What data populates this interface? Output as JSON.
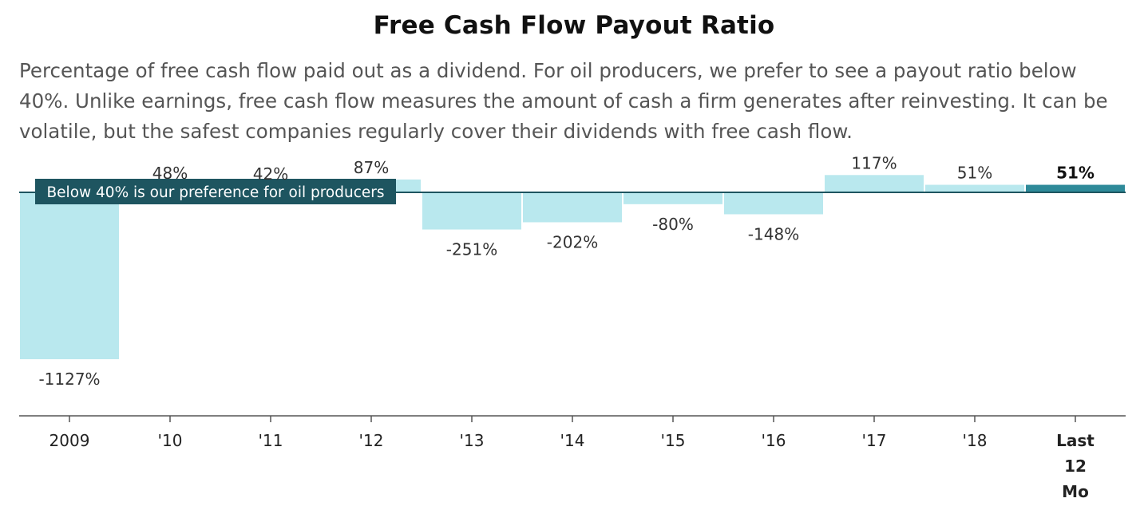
{
  "title": "Free Cash Flow Payout Ratio",
  "description": "Percentage of free cash flow paid out as a dividend. For oil producers, we prefer to see a payout ratio below 40%. Unlike earnings, free cash flow measures the amount of cash a firm generates after reinvesting. It can be volatile, but the safest companies regularly cover their dividends with free cash flow.",
  "colors": {
    "bar": "#b9e8ee",
    "bar_highlight": "#2e8a99",
    "reference_line": "#1e5560",
    "reference_label_bg": "#1e5560",
    "axis": "#555555"
  },
  "chart_data": {
    "type": "bar",
    "categories": [
      "2009",
      "'10",
      "'11",
      "'12",
      "'13",
      "'14",
      "'15",
      "'16",
      "'17",
      "'18",
      "Last 12 Mo"
    ],
    "category_lines": [
      [
        "2009"
      ],
      [
        "'10"
      ],
      [
        "'11"
      ],
      [
        "'12"
      ],
      [
        "'13"
      ],
      [
        "'14"
      ],
      [
        "'15"
      ],
      [
        "'16"
      ],
      [
        "'17"
      ],
      [
        "'18"
      ],
      [
        "Last",
        "12",
        "Mo"
      ]
    ],
    "values": [
      -1127,
      48,
      42,
      87,
      -251,
      -202,
      -80,
      -148,
      117,
      51,
      51
    ],
    "value_labels": [
      "-1127%",
      "48%",
      "42%",
      "87%",
      "-251%",
      "-202%",
      "-80%",
      "-148%",
      "117%",
      "51%",
      "51%"
    ],
    "highlight_index": 10,
    "reference_line": {
      "value": 40,
      "label": "Below 40% is our preference for oil producers"
    },
    "ylim": [
      -1515,
      275
    ],
    "xlabel": "",
    "ylabel": "",
    "grid": false
  }
}
